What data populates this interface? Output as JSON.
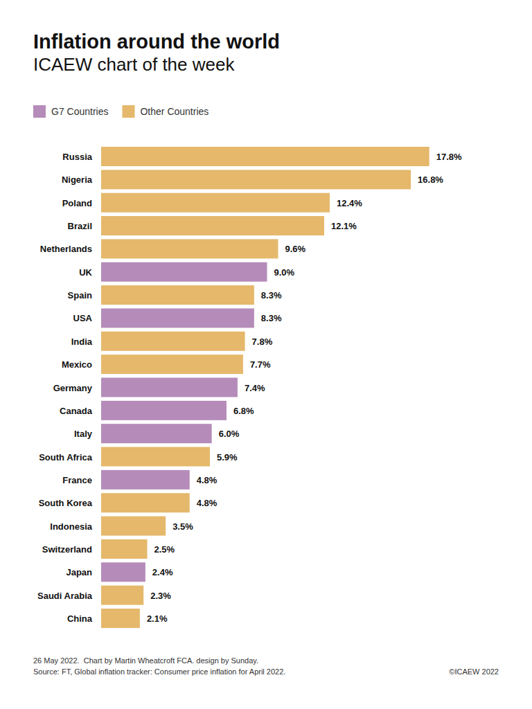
{
  "chart_data": {
    "type": "bar",
    "orientation": "horizontal",
    "title": "Inflation around the world",
    "subtitle": "ICAEW chart of the week",
    "annotations": [
      "26 May 2022.  Chart by Martin Wheatcroft FCA. design by Sunday.",
      "Source: FT, Global inflation tracker: Consumer price inflation for April 2022.",
      "©ICAEW 2022"
    ],
    "categories": [
      "Russia",
      "Nigeria",
      "Poland",
      "Brazil",
      "Netherlands",
      "UK",
      "Spain",
      "USA",
      "India",
      "Mexico",
      "Germany",
      "Canada",
      "Italy",
      "South Africa",
      "France",
      "South Korea",
      "Indonesia",
      "Switzerland",
      "Japan",
      "Saudi Arabia",
      "China"
    ],
    "series": [
      {
        "name": "G7 Countries",
        "color": "#b58cb9",
        "values": [
          null,
          null,
          null,
          null,
          null,
          9.0,
          null,
          8.3,
          null,
          null,
          7.4,
          6.8,
          6.0,
          null,
          4.8,
          null,
          null,
          null,
          2.4,
          null,
          null
        ],
        "value_labels": [
          null,
          null,
          null,
          null,
          null,
          "9.0%",
          null,
          "8.3%",
          null,
          null,
          "7.4%",
          "6.8%",
          "6.0%",
          null,
          "4.8%",
          null,
          null,
          null,
          "2.4%",
          null,
          null
        ]
      },
      {
        "name": "Other Countries",
        "color": "#e5b86b",
        "values": [
          17.8,
          16.8,
          12.4,
          12.1,
          9.6,
          null,
          8.3,
          null,
          7.8,
          7.7,
          null,
          null,
          null,
          5.9,
          null,
          4.8,
          3.5,
          2.5,
          null,
          2.3,
          2.1
        ],
        "value_labels": [
          "17.8%",
          "16.8%",
          "12.4%",
          "12.1%",
          "9.6%",
          null,
          "8.3%",
          null,
          "7.8%",
          "7.7%",
          null,
          null,
          null,
          "5.9%",
          null,
          "4.8%",
          "3.5%",
          "2.5%",
          null,
          "2.3%",
          "2.1%"
        ]
      }
    ],
    "xlim": [
      0,
      18
    ],
    "grid": false,
    "legend": "top-left",
    "data_labels": true,
    "tick_labels": "y"
  }
}
